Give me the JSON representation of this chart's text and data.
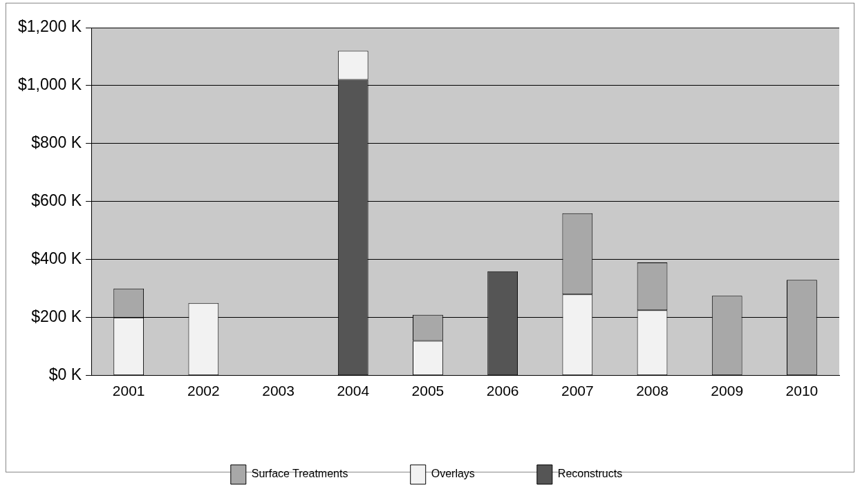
{
  "chart_data": {
    "type": "bar",
    "stacked": true,
    "categories": [
      "2001",
      "2002",
      "2003",
      "2004",
      "2005",
      "2006",
      "2007",
      "2008",
      "2009",
      "2010"
    ],
    "series": [
      {
        "name": "Reconstructs",
        "color": "#555555",
        "values": [
          null,
          null,
          null,
          1020,
          null,
          360,
          null,
          null,
          null,
          null
        ]
      },
      {
        "name": "Overlays",
        "color": "#f2f2f2",
        "values": [
          200,
          250,
          null,
          100,
          120,
          null,
          280,
          225,
          null,
          null
        ]
      },
      {
        "name": "Surface Treatments",
        "color": "#a8a8a8",
        "values": [
          100,
          null,
          null,
          null,
          90,
          null,
          280,
          165,
          275,
          330
        ]
      }
    ],
    "ylim": [
      0,
      1200
    ],
    "yticks": [
      {
        "value": 0,
        "label": "$0 K"
      },
      {
        "value": 200,
        "label": "$200 K"
      },
      {
        "value": 400,
        "label": "$400 K"
      },
      {
        "value": 600,
        "label": "$600 K"
      },
      {
        "value": 800,
        "label": "$800 K"
      },
      {
        "value": 1000,
        "label": "$1,000 K"
      },
      {
        "value": 1200,
        "label": "$1,200 K"
      }
    ],
    "grid": "y",
    "legend": "bottom"
  }
}
